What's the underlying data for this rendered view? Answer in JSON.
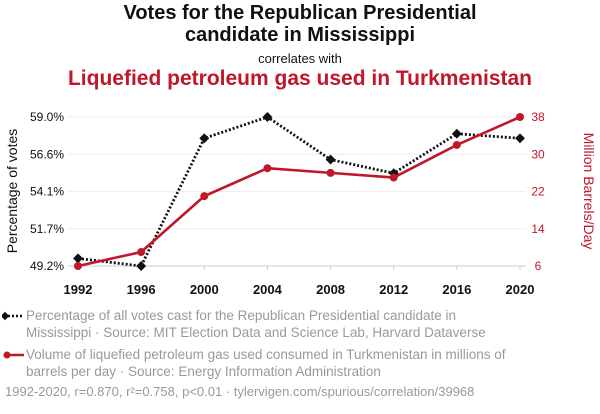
{
  "header": {
    "title_line1": "Votes for the Republican Presidential",
    "title_line2": "candidate in Mississippi",
    "connector": "correlates with",
    "subtitle": "Liquefied petroleum gas used in Turkmenistan"
  },
  "colors": {
    "series1": "#111111",
    "series2": "#c0172b",
    "muted": "#999999",
    "grid": "#eeeeee"
  },
  "chart_data": {
    "type": "line",
    "x": [
      "1992",
      "1996",
      "2000",
      "2004",
      "2008",
      "2012",
      "2016",
      "2020"
    ],
    "xlabel": "",
    "y_left": {
      "label": "Percentage of votes",
      "ticks": [
        "49.2%",
        "51.7%",
        "54.1%",
        "56.6%",
        "59.0%"
      ],
      "range": [
        49.2,
        59.0
      ]
    },
    "y_right": {
      "label": "Million Barrels/Day",
      "ticks": [
        "6",
        "14",
        "22",
        "30",
        "38"
      ],
      "range": [
        6,
        38
      ]
    },
    "series": [
      {
        "name": "Percentage of all votes cast for the Republican Presidential candidate in Mississippi",
        "axis": "left",
        "style": "dotted",
        "marker": "diamond",
        "values": [
          49.7,
          49.2,
          57.6,
          59.0,
          56.2,
          55.3,
          57.9,
          57.6
        ]
      },
      {
        "name": "Volume of liquefied petroleum gas used consumed in Turkmenistan in millions of barrels per day",
        "axis": "right",
        "style": "solid",
        "marker": "circle",
        "values": [
          6.0,
          9.0,
          21.0,
          27.0,
          26.0,
          25.0,
          32.0,
          38.0
        ]
      }
    ]
  },
  "legend": [
    {
      "line1": "Percentage of all votes cast for the Republican Presidential candidate in",
      "line2": "Mississippi · Source: MIT Election Data and Science Lab, Harvard Dataverse"
    },
    {
      "line1": "Volume of liquefied petroleum gas used consumed in Turkmenistan in millions of",
      "line2": "barrels per day · Source: Energy Information Administration"
    }
  ],
  "footer": "1992-2020, r=0.870, r²=0.758, p<0.01 · tylervigen.com/spurious/correlation/39968"
}
